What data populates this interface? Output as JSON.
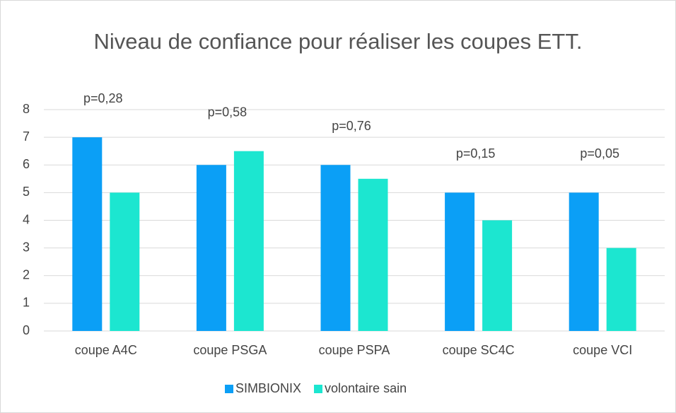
{
  "chart_data": {
    "type": "bar",
    "title": "Niveau de confiance pour réaliser les coupes ETT.",
    "categories": [
      "coupe A4C",
      "coupe PSGA",
      "coupe PSPA",
      "coupe SC4C",
      "coupe VCI"
    ],
    "series": [
      {
        "name": "SIMBIONIX",
        "color": "#0b9ff6",
        "values": [
          7,
          6,
          6,
          5,
          5
        ]
      },
      {
        "name": "volontaire sain",
        "color": "#1ce6d0",
        "values": [
          5,
          6.5,
          5.5,
          4,
          3
        ]
      }
    ],
    "annotations": [
      "p=0,28",
      "p=0,58",
      "p=0,76",
      "p=0,15",
      "p=0,05"
    ],
    "ylim": [
      0,
      8
    ],
    "yticks": [
      0,
      1,
      2,
      3,
      4,
      5,
      6,
      7,
      8
    ],
    "grid": true,
    "legend": "bottom"
  }
}
